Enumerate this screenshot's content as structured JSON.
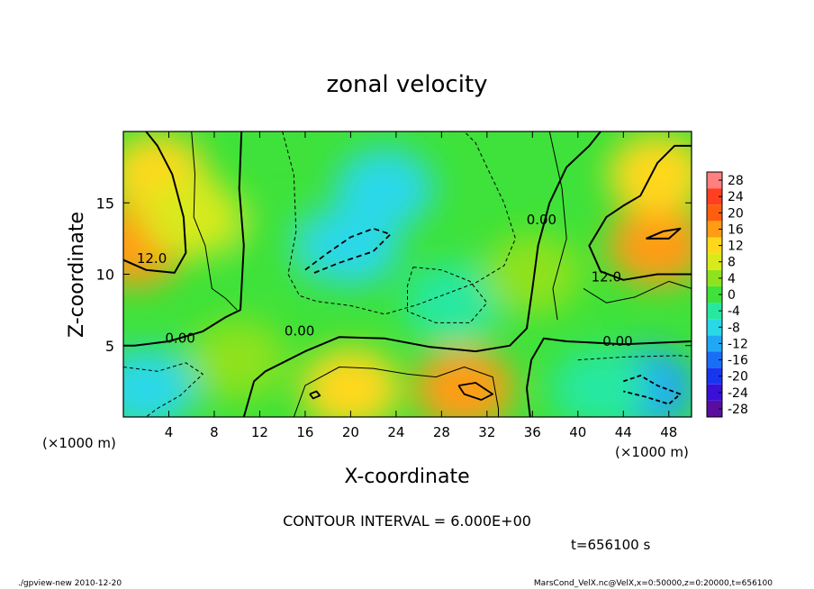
{
  "chart_data": {
    "type": "heatmap",
    "title": "zonal velocity",
    "xlabel": "X-coordinate",
    "ylabel": "Z-coordinate",
    "x_unit_label": "(×1000 m)",
    "y_unit_label": "(×1000 m)",
    "x_ticks": [
      "4",
      "8",
      "12",
      "16",
      "20",
      "24",
      "28",
      "32",
      "36",
      "40",
      "44",
      "48"
    ],
    "x_tick_values": [
      4,
      8,
      12,
      16,
      20,
      24,
      28,
      32,
      36,
      40,
      44,
      48
    ],
    "y_ticks": [
      "5",
      "10",
      "15"
    ],
    "y_tick_values": [
      5,
      10,
      15
    ],
    "xlim": [
      0,
      50
    ],
    "ylim": [
      0,
      20
    ],
    "colorbar_labels": [
      "28",
      "24",
      "20",
      "16",
      "12",
      "8",
      "4",
      "0",
      "-4",
      "-8",
      "-12",
      "-16",
      "-20",
      "-24",
      "-28"
    ],
    "colorbar_values": [
      28,
      24,
      20,
      16,
      12,
      8,
      4,
      0,
      -4,
      -8,
      -12,
      -16,
      -20,
      -24,
      -28
    ],
    "contour_labels": [
      {
        "text": "12.0",
        "x": 2.5,
        "z": 10.8
      },
      {
        "text": "0.00",
        "x": 5.0,
        "z": 5.2
      },
      {
        "text": "0.00",
        "x": 15.5,
        "z": 5.7
      },
      {
        "text": "0.00",
        "x": 36.8,
        "z": 13.5
      },
      {
        "text": "12.0",
        "x": 42.5,
        "z": 9.5
      },
      {
        "text": "0.00",
        "x": 43.5,
        "z": 5.0
      }
    ],
    "field_samples": [
      {
        "x": 1,
        "z": 12,
        "u": 16
      },
      {
        "x": 3,
        "z": 17,
        "u": 10
      },
      {
        "x": 2,
        "z": 2,
        "u": -10
      },
      {
        "x": 6,
        "z": 14,
        "u": 6
      },
      {
        "x": 14,
        "z": 12,
        "u": -2
      },
      {
        "x": 20,
        "z": 12,
        "u": -10
      },
      {
        "x": 23,
        "z": 16,
        "u": -8
      },
      {
        "x": 29,
        "z": 8,
        "u": -6
      },
      {
        "x": 20,
        "z": 2,
        "u": 12
      },
      {
        "x": 30,
        "z": 2,
        "u": 16
      },
      {
        "x": 36,
        "z": 10,
        "u": 2
      },
      {
        "x": 47,
        "z": 12,
        "u": 16
      },
      {
        "x": 47,
        "z": 17,
        "u": 10
      },
      {
        "x": 46,
        "z": 2,
        "u": -12
      },
      {
        "x": 42,
        "z": 2,
        "u": -6
      },
      {
        "x": 10,
        "z": 4,
        "u": 2
      }
    ],
    "grid": false,
    "legend": "right"
  },
  "annotations": {
    "contour_interval": "CONTOUR INTERVAL = 6.000E+00",
    "time": "t=656100 s",
    "footer_left": "./gpview-new  2010-12-20",
    "footer_right": "MarsCond_VelX.nc@VelX,x=0:50000,z=0:20000,t=656100"
  }
}
